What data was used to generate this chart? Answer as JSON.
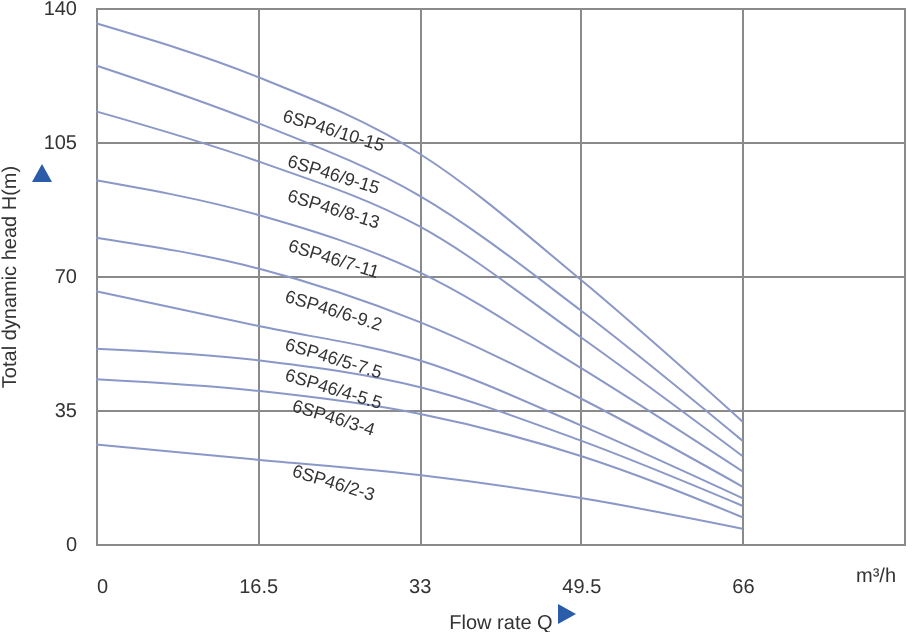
{
  "chart_data": {
    "type": "line",
    "xlabel": "Flow rate Q",
    "ylabel": "Total dynamic head H(m)",
    "x": [
      0,
      16.5,
      33,
      49.5,
      66
    ],
    "series": [
      {
        "name": "6SP46/10-15",
        "color": "#8a98c8",
        "values": [
          136,
          122,
          102,
          69,
          32
        ]
      },
      {
        "name": "6SP46/9-15",
        "color": "#8a98c8",
        "values": [
          125,
          110,
          91,
          61,
          27
        ]
      },
      {
        "name": "6SP46/8-13",
        "color": "#8a98c8",
        "values": [
          113,
          100,
          83,
          54,
          23
        ]
      },
      {
        "name": "6SP46/7-11",
        "color": "#8a98c8",
        "values": [
          95,
          86,
          71,
          46,
          19
        ]
      },
      {
        "name": "6SP46/6-9.2",
        "color": "#8a98c8",
        "values": [
          80,
          72,
          58,
          38,
          15
        ]
      },
      {
        "name": "6SP46/5-7.5",
        "color": "#8a98c8",
        "values": [
          66,
          57,
          48,
          31,
          12
        ]
      },
      {
        "name": "6SP46/4-5.5",
        "color": "#8a98c8",
        "values": [
          51,
          48,
          41,
          27,
          10
        ]
      },
      {
        "name": "6SP46/3-4",
        "color": "#8a98c8",
        "values": [
          43,
          40,
          34,
          23,
          7
        ]
      },
      {
        "name": "6SP46/2-3",
        "color": "#8a98c8",
        "values": [
          26,
          22,
          18,
          12,
          4
        ]
      }
    ],
    "annotations": [
      "m³/h"
    ],
    "xlim": [
      0,
      82.5
    ],
    "xticks": [
      0,
      16.5,
      33,
      49.5,
      66
    ],
    "ylim": [
      0,
      140
    ],
    "yticks": [
      0,
      35,
      70,
      105,
      140
    ],
    "grid": true,
    "marker": "none",
    "line_style": "solid"
  }
}
